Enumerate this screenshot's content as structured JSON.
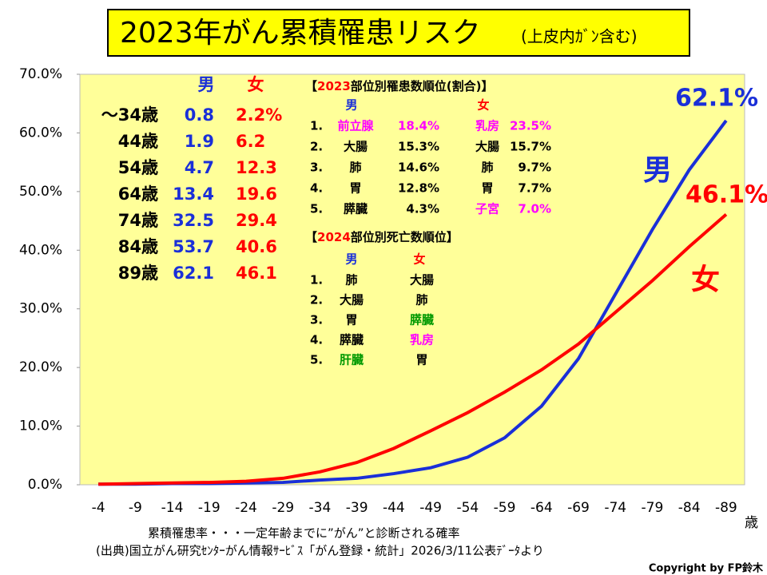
{
  "chart_data": {
    "type": "line",
    "title": "2023年がん累積罹患リスク",
    "subtitle": "(上皮内ｶﾞﾝ含む)",
    "x_unit": "歳",
    "categories": [
      "-4",
      "-9",
      "-14",
      "-19",
      "-24",
      "-29",
      "-34",
      "-39",
      "-44",
      "-49",
      "-54",
      "-59",
      "-64",
      "-69",
      "-74",
      "-79",
      "-84",
      "-89"
    ],
    "series": [
      {
        "name": "男",
        "color": "#1a2fd8",
        "values": [
          0.1,
          0.1,
          0.2,
          0.2,
          0.3,
          0.4,
          0.8,
          1.1,
          1.9,
          2.9,
          4.7,
          8.0,
          13.4,
          21.5,
          32.5,
          43.5,
          53.7,
          62.1
        ],
        "end_label": "62.1%"
      },
      {
        "name": "女",
        "color": "#ff0000",
        "values": [
          0.1,
          0.2,
          0.3,
          0.4,
          0.6,
          1.1,
          2.2,
          3.8,
          6.2,
          9.2,
          12.3,
          15.8,
          19.6,
          24.0,
          29.4,
          34.8,
          40.6,
          46.1
        ],
        "end_label": "46.1%"
      }
    ],
    "ylim": [
      0,
      70
    ],
    "yticks": [
      {
        "value": 0,
        "label": "0.0%"
      },
      {
        "value": 10,
        "label": "10.0%"
      },
      {
        "value": 20,
        "label": "20.0%"
      },
      {
        "value": 30,
        "label": "30.0%"
      },
      {
        "value": 40,
        "label": "40.0%"
      },
      {
        "value": 50,
        "label": "50.0%"
      },
      {
        "value": 60,
        "label": "60.0%"
      },
      {
        "value": 70,
        "label": "70.0%"
      }
    ],
    "plot_background": "#ffff99",
    "grid": false
  },
  "age_table": {
    "header": [
      "男",
      "女"
    ],
    "rows": [
      [
        "～34歳",
        "0.8",
        "2.2%"
      ],
      [
        "44歳",
        "1.9",
        "6.2"
      ],
      [
        "54歳",
        "4.7",
        "12.3"
      ],
      [
        "64歳",
        "13.4",
        "19.6"
      ],
      [
        "74歳",
        "32.5",
        "29.4"
      ],
      [
        "84歳",
        "53.7",
        "40.6"
      ],
      [
        "89歳",
        "62.1",
        "46.1"
      ]
    ]
  },
  "incidence": {
    "title": [
      "【",
      "2023",
      "部位別罹患数順位(割合)】"
    ],
    "header": [
      "男",
      "女"
    ],
    "rows": [
      [
        "1.",
        "前立腺",
        "18.4%",
        "乳房",
        "23.5%"
      ],
      [
        "2.",
        "大腸",
        "15.3%",
        "大腸",
        "15.7%"
      ],
      [
        "3.",
        "肺",
        "14.6%",
        "肺",
        "9.7%"
      ],
      [
        "4.",
        "胃",
        "12.8%",
        "胃",
        "7.7%"
      ],
      [
        "5.",
        "膵臓",
        "4.3%",
        "子宮",
        "7.0%"
      ]
    ]
  },
  "mortality": {
    "title": [
      "【",
      "2024",
      "部位別死亡数順位】"
    ],
    "header": [
      "男",
      "女"
    ],
    "rows": [
      [
        "1.",
        "肺",
        "大腸"
      ],
      [
        "2.",
        "大腸",
        "肺"
      ],
      [
        "3.",
        "胃",
        "膵臓"
      ],
      [
        "4.",
        "膵臓",
        "乳房"
      ],
      [
        "5.",
        "肝臓",
        "胃"
      ]
    ]
  },
  "footnotes": [
    "累積罹患率・・・一定年齢までに”がん”と診断される確率",
    "(出典)国立がん研究ｾﾝﾀｰがん情報ｻｰﾋﾞｽ「がん登録・統計」2026/3/11公表ﾃﾞｰﾀより"
  ],
  "copyright": "Copyright by FP鈴木"
}
